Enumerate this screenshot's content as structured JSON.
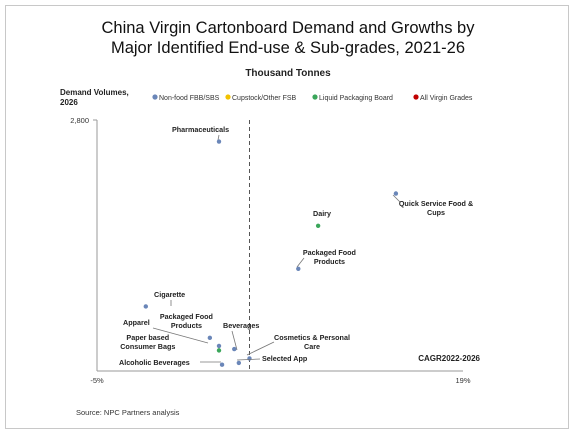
{
  "title_line1": "China Virgin Cartonboard Demand and Growths by",
  "title_line2": "Major Identified End-use & Sub-grades, 2021-26",
  "subtitle": "Thousand Tonnes",
  "source": "Source: NPC Partners analysis",
  "colors": {
    "non_food": "#6a86b8",
    "cupstock": "#f2c200",
    "liquid": "#3aa65a",
    "all_virgin": "#c00000"
  },
  "chart_data": {
    "type": "scatter",
    "title": "China Virgin Cartonboard Demand and Growths by Major Identified End-use & Sub-grades, 2021-26",
    "ylabel_line1": "Demand Volumes,",
    "ylabel_line2": "2026",
    "xlabel": "CAGR2022-2026",
    "xlim": [
      -5,
      19
    ],
    "ylim": [
      0,
      2800
    ],
    "x_ticks": [
      "-5%",
      "19%"
    ],
    "y_ticks": [
      "2,800"
    ],
    "reference_line_x": 5,
    "legend_position": "top",
    "legend": [
      {
        "name": "Non-food FBB/SBS",
        "color": "#6a86b8"
      },
      {
        "name": "Cupstock/Other FSB",
        "color": "#f2c200"
      },
      {
        "name": "Liquid Packaging Board",
        "color": "#3aa65a"
      },
      {
        "name": "All Virgin Grades",
        "color": "#c00000"
      }
    ],
    "points": [
      {
        "label_lines": [
          "Pharmaceuticals"
        ],
        "x": 3.0,
        "y": 2560,
        "color": "#6a86b8"
      },
      {
        "label_lines": [
          "Quick Service Food &",
          "Cups"
        ],
        "x": 14.6,
        "y": 1980,
        "color": "#6a86b8"
      },
      {
        "label_lines": [
          "Dairy"
        ],
        "x": 9.5,
        "y": 1620,
        "color": "#3aa65a"
      },
      {
        "label_lines": [
          "Packaged Food",
          "Products"
        ],
        "x": 8.2,
        "y": 1140,
        "color": "#6a86b8"
      },
      {
        "label_lines": [
          "Cigarette"
        ],
        "x": -1.8,
        "y": 720,
        "color": "#6a86b8"
      },
      {
        "label_lines": [
          "Packaged Food",
          "Products"
        ],
        "x": 2.4,
        "y": 370,
        "color": "#6a86b8"
      },
      {
        "label_lines": [
          "Apparel"
        ],
        "x": 3.0,
        "y": 280,
        "color": "#6a86b8"
      },
      {
        "label_lines": [
          "Beverages"
        ],
        "x": 4.0,
        "y": 245,
        "color": "#6a86b8"
      },
      {
        "label_lines": [
          "Paper based",
          "Consumer Bags"
        ],
        "x": 3.0,
        "y": 230,
        "color": "#3aa65a"
      },
      {
        "label_lines": [
          "Cosmetics & Personal",
          "Care"
        ],
        "x": 5.0,
        "y": 140,
        "color": "#6a86b8"
      },
      {
        "label_lines": [
          "Selected App"
        ],
        "x": 4.3,
        "y": 90,
        "color": "#6a86b8"
      },
      {
        "label_lines": [
          "Alcoholic Beverages"
        ],
        "x": 3.2,
        "y": 70,
        "color": "#6a86b8"
      }
    ]
  }
}
